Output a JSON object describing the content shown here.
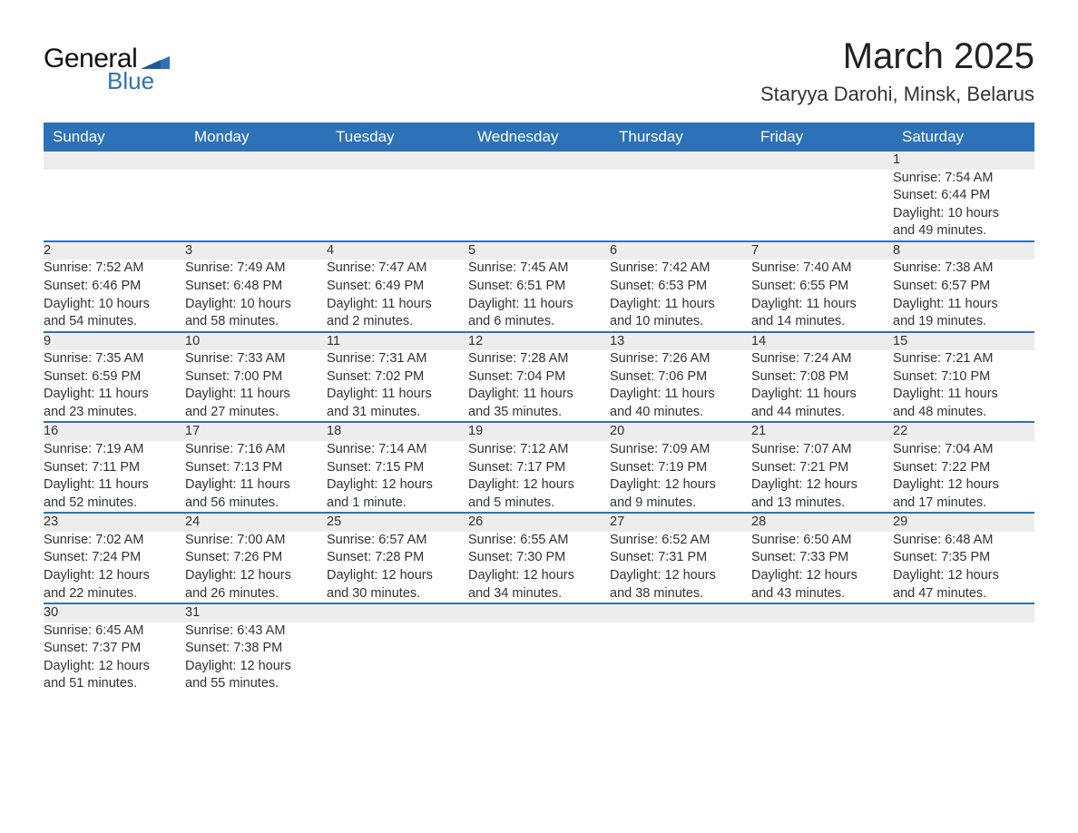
{
  "logo": {
    "general": "General",
    "blue": "Blue",
    "flag_color": "#2d72b8"
  },
  "title": "March 2025",
  "location": "Staryya Darohi, Minsk, Belarus",
  "header_bg": "#2d72b8",
  "header_fg": "#ffffff",
  "daynum_bg": "#ededed",
  "row_border": "#2d72b8",
  "text_color": "#333333",
  "font_family": "Arial, Helvetica, sans-serif",
  "title_fontsize": 40,
  "location_fontsize": 22,
  "header_fontsize": 17,
  "cell_fontsize": 14.5,
  "weekdays": [
    "Sunday",
    "Monday",
    "Tuesday",
    "Wednesday",
    "Thursday",
    "Friday",
    "Saturday"
  ],
  "weeks": [
    [
      null,
      null,
      null,
      null,
      null,
      null,
      {
        "n": "1",
        "sunrise": "Sunrise: 7:54 AM",
        "sunset": "Sunset: 6:44 PM",
        "day1": "Daylight: 10 hours",
        "day2": "and 49 minutes."
      }
    ],
    [
      {
        "n": "2",
        "sunrise": "Sunrise: 7:52 AM",
        "sunset": "Sunset: 6:46 PM",
        "day1": "Daylight: 10 hours",
        "day2": "and 54 minutes."
      },
      {
        "n": "3",
        "sunrise": "Sunrise: 7:49 AM",
        "sunset": "Sunset: 6:48 PM",
        "day1": "Daylight: 10 hours",
        "day2": "and 58 minutes."
      },
      {
        "n": "4",
        "sunrise": "Sunrise: 7:47 AM",
        "sunset": "Sunset: 6:49 PM",
        "day1": "Daylight: 11 hours",
        "day2": "and 2 minutes."
      },
      {
        "n": "5",
        "sunrise": "Sunrise: 7:45 AM",
        "sunset": "Sunset: 6:51 PM",
        "day1": "Daylight: 11 hours",
        "day2": "and 6 minutes."
      },
      {
        "n": "6",
        "sunrise": "Sunrise: 7:42 AM",
        "sunset": "Sunset: 6:53 PM",
        "day1": "Daylight: 11 hours",
        "day2": "and 10 minutes."
      },
      {
        "n": "7",
        "sunrise": "Sunrise: 7:40 AM",
        "sunset": "Sunset: 6:55 PM",
        "day1": "Daylight: 11 hours",
        "day2": "and 14 minutes."
      },
      {
        "n": "8",
        "sunrise": "Sunrise: 7:38 AM",
        "sunset": "Sunset: 6:57 PM",
        "day1": "Daylight: 11 hours",
        "day2": "and 19 minutes."
      }
    ],
    [
      {
        "n": "9",
        "sunrise": "Sunrise: 7:35 AM",
        "sunset": "Sunset: 6:59 PM",
        "day1": "Daylight: 11 hours",
        "day2": "and 23 minutes."
      },
      {
        "n": "10",
        "sunrise": "Sunrise: 7:33 AM",
        "sunset": "Sunset: 7:00 PM",
        "day1": "Daylight: 11 hours",
        "day2": "and 27 minutes."
      },
      {
        "n": "11",
        "sunrise": "Sunrise: 7:31 AM",
        "sunset": "Sunset: 7:02 PM",
        "day1": "Daylight: 11 hours",
        "day2": "and 31 minutes."
      },
      {
        "n": "12",
        "sunrise": "Sunrise: 7:28 AM",
        "sunset": "Sunset: 7:04 PM",
        "day1": "Daylight: 11 hours",
        "day2": "and 35 minutes."
      },
      {
        "n": "13",
        "sunrise": "Sunrise: 7:26 AM",
        "sunset": "Sunset: 7:06 PM",
        "day1": "Daylight: 11 hours",
        "day2": "and 40 minutes."
      },
      {
        "n": "14",
        "sunrise": "Sunrise: 7:24 AM",
        "sunset": "Sunset: 7:08 PM",
        "day1": "Daylight: 11 hours",
        "day2": "and 44 minutes."
      },
      {
        "n": "15",
        "sunrise": "Sunrise: 7:21 AM",
        "sunset": "Sunset: 7:10 PM",
        "day1": "Daylight: 11 hours",
        "day2": "and 48 minutes."
      }
    ],
    [
      {
        "n": "16",
        "sunrise": "Sunrise: 7:19 AM",
        "sunset": "Sunset: 7:11 PM",
        "day1": "Daylight: 11 hours",
        "day2": "and 52 minutes."
      },
      {
        "n": "17",
        "sunrise": "Sunrise: 7:16 AM",
        "sunset": "Sunset: 7:13 PM",
        "day1": "Daylight: 11 hours",
        "day2": "and 56 minutes."
      },
      {
        "n": "18",
        "sunrise": "Sunrise: 7:14 AM",
        "sunset": "Sunset: 7:15 PM",
        "day1": "Daylight: 12 hours",
        "day2": "and 1 minute."
      },
      {
        "n": "19",
        "sunrise": "Sunrise: 7:12 AM",
        "sunset": "Sunset: 7:17 PM",
        "day1": "Daylight: 12 hours",
        "day2": "and 5 minutes."
      },
      {
        "n": "20",
        "sunrise": "Sunrise: 7:09 AM",
        "sunset": "Sunset: 7:19 PM",
        "day1": "Daylight: 12 hours",
        "day2": "and 9 minutes."
      },
      {
        "n": "21",
        "sunrise": "Sunrise: 7:07 AM",
        "sunset": "Sunset: 7:21 PM",
        "day1": "Daylight: 12 hours",
        "day2": "and 13 minutes."
      },
      {
        "n": "22",
        "sunrise": "Sunrise: 7:04 AM",
        "sunset": "Sunset: 7:22 PM",
        "day1": "Daylight: 12 hours",
        "day2": "and 17 minutes."
      }
    ],
    [
      {
        "n": "23",
        "sunrise": "Sunrise: 7:02 AM",
        "sunset": "Sunset: 7:24 PM",
        "day1": "Daylight: 12 hours",
        "day2": "and 22 minutes."
      },
      {
        "n": "24",
        "sunrise": "Sunrise: 7:00 AM",
        "sunset": "Sunset: 7:26 PM",
        "day1": "Daylight: 12 hours",
        "day2": "and 26 minutes."
      },
      {
        "n": "25",
        "sunrise": "Sunrise: 6:57 AM",
        "sunset": "Sunset: 7:28 PM",
        "day1": "Daylight: 12 hours",
        "day2": "and 30 minutes."
      },
      {
        "n": "26",
        "sunrise": "Sunrise: 6:55 AM",
        "sunset": "Sunset: 7:30 PM",
        "day1": "Daylight: 12 hours",
        "day2": "and 34 minutes."
      },
      {
        "n": "27",
        "sunrise": "Sunrise: 6:52 AM",
        "sunset": "Sunset: 7:31 PM",
        "day1": "Daylight: 12 hours",
        "day2": "and 38 minutes."
      },
      {
        "n": "28",
        "sunrise": "Sunrise: 6:50 AM",
        "sunset": "Sunset: 7:33 PM",
        "day1": "Daylight: 12 hours",
        "day2": "and 43 minutes."
      },
      {
        "n": "29",
        "sunrise": "Sunrise: 6:48 AM",
        "sunset": "Sunset: 7:35 PM",
        "day1": "Daylight: 12 hours",
        "day2": "and 47 minutes."
      }
    ],
    [
      {
        "n": "30",
        "sunrise": "Sunrise: 6:45 AM",
        "sunset": "Sunset: 7:37 PM",
        "day1": "Daylight: 12 hours",
        "day2": "and 51 minutes."
      },
      {
        "n": "31",
        "sunrise": "Sunrise: 6:43 AM",
        "sunset": "Sunset: 7:38 PM",
        "day1": "Daylight: 12 hours",
        "day2": "and 55 minutes."
      },
      null,
      null,
      null,
      null,
      null
    ]
  ]
}
